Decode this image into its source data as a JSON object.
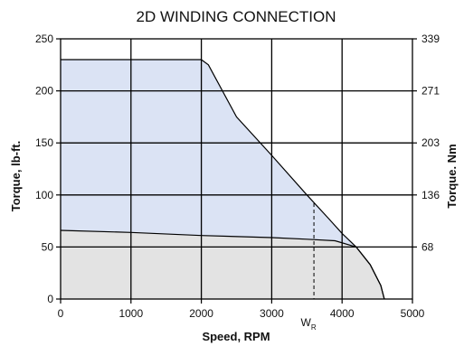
{
  "chart_data": {
    "type": "area",
    "title": "2D WINDING CONNECTION",
    "xlabel": "Speed, RPM",
    "ylabel": "Torque, lb-ft.",
    "y2label": "Torque. Nm",
    "xlim": [
      0,
      5000
    ],
    "ylim": [
      0,
      250
    ],
    "xticks": [
      0,
      1000,
      2000,
      3000,
      4000,
      5000
    ],
    "yticks": [
      0,
      50,
      100,
      150,
      200,
      250
    ],
    "y2ticks": [
      {
        "at": 50,
        "label": "68"
      },
      {
        "at": 100,
        "label": "136"
      },
      {
        "at": 150,
        "label": "203"
      },
      {
        "at": 200,
        "label": "271"
      },
      {
        "at": 250,
        "label": "339"
      }
    ],
    "grid": true,
    "series": [
      {
        "role": "intermittent",
        "color": "#dbe3f4",
        "points": [
          [
            0,
            230
          ],
          [
            2000,
            230
          ],
          [
            2100,
            225
          ],
          [
            2500,
            175
          ],
          [
            3000,
            138
          ],
          [
            3500,
            100
          ],
          [
            3800,
            78
          ],
          [
            4000,
            63
          ],
          [
            4200,
            50
          ],
          [
            4400,
            33
          ],
          [
            4550,
            13
          ],
          [
            4600,
            0
          ]
        ]
      },
      {
        "role": "continuous",
        "color": "#e3e3e3",
        "points": [
          [
            0,
            66
          ],
          [
            1000,
            64
          ],
          [
            2000,
            61
          ],
          [
            3000,
            59
          ],
          [
            3500,
            57.5
          ],
          [
            3900,
            56
          ],
          [
            4050,
            53
          ],
          [
            4200,
            50
          ],
          [
            4400,
            33
          ],
          [
            4550,
            13
          ],
          [
            4600,
            0
          ]
        ]
      }
    ],
    "annotations": [
      {
        "text": "W",
        "sub": "R",
        "x": 3600,
        "y_top": 92
      }
    ]
  }
}
